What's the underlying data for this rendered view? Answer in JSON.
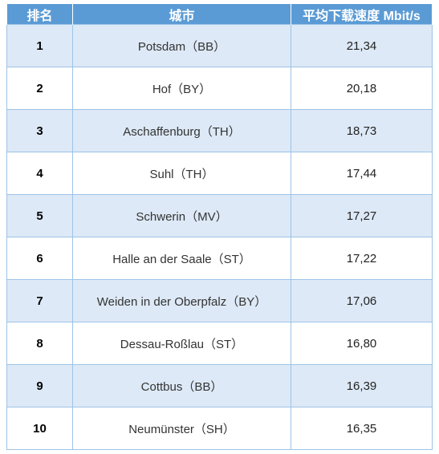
{
  "table": {
    "headers": {
      "rank": "排名",
      "city": "城市",
      "speed": "平均下载速度 Mbit/s"
    },
    "rows": [
      {
        "rank": "1",
        "city": "Potsdam（BB）",
        "speed": "21,34"
      },
      {
        "rank": "2",
        "city": "Hof（BY）",
        "speed": "20,18"
      },
      {
        "rank": "3",
        "city": "Aschaffenburg（TH）",
        "speed": "18,73"
      },
      {
        "rank": "4",
        "city": "Suhl（TH）",
        "speed": "17,44"
      },
      {
        "rank": "5",
        "city": "Schwerin（MV）",
        "speed": "17,27"
      },
      {
        "rank": "6",
        "city": "Halle an der Saale（ST）",
        "speed": "17,22"
      },
      {
        "rank": "7",
        "city": "Weiden in der Oberpfalz（BY）",
        "speed": "17,06"
      },
      {
        "rank": "8",
        "city": "Dessau-Roßlau（ST）",
        "speed": "16,80"
      },
      {
        "rank": "9",
        "city": "Cottbus（BB）",
        "speed": "16,39"
      },
      {
        "rank": "10",
        "city": "Neumünster（SH）",
        "speed": "16,35"
      }
    ]
  },
  "colors": {
    "header_bg": "#5b9bd5",
    "row_band": "#dde9f6",
    "row_plain": "#ffffff",
    "border": "#9dc3e6"
  }
}
